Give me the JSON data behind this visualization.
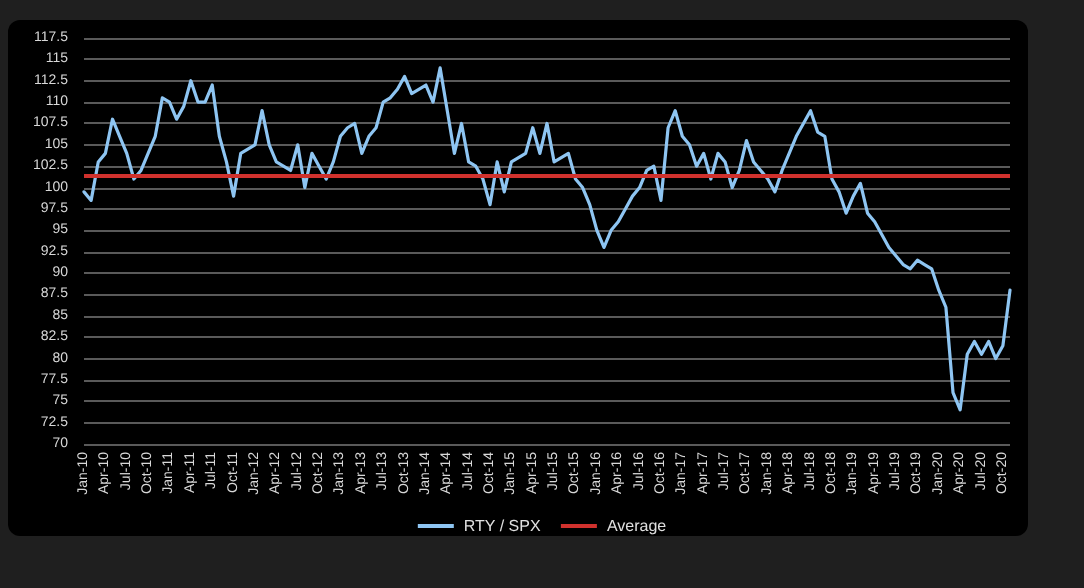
{
  "chart_data": {
    "type": "line",
    "categories": [
      "Jan-10",
      null,
      null,
      "Apr-10",
      null,
      null,
      "Jul-10",
      null,
      null,
      "Oct-10",
      null,
      null,
      "Jan-11",
      null,
      null,
      "Apr-11",
      null,
      null,
      "Jul-11",
      null,
      null,
      "Oct-11",
      null,
      null,
      "Jan-12",
      null,
      null,
      "Apr-12",
      null,
      null,
      "Jul-12",
      null,
      null,
      "Oct-12",
      null,
      null,
      "Jan-13",
      null,
      null,
      "Apr-13",
      null,
      null,
      "Jul-13",
      null,
      null,
      "Oct-13",
      null,
      null,
      "Jan-14",
      null,
      null,
      "Apr-14",
      null,
      null,
      "Jul-14",
      null,
      null,
      "Oct-14",
      null,
      null,
      "Jan-15",
      null,
      null,
      "Apr-15",
      null,
      null,
      "Jul-15",
      null,
      null,
      "Oct-15",
      null,
      null,
      "Jan-16",
      null,
      null,
      "Apr-16",
      null,
      null,
      "Jul-16",
      null,
      null,
      "Oct-16",
      null,
      null,
      "Jan-17",
      null,
      null,
      "Apr-17",
      null,
      null,
      "Jul-17",
      null,
      null,
      "Oct-17",
      null,
      null,
      "Jan-18",
      null,
      null,
      "Apr-18",
      null,
      null,
      "Jul-18",
      null,
      null,
      "Oct-18",
      null,
      null,
      "Jan-19",
      null,
      null,
      "Apr-19",
      null,
      null,
      "Jul-19",
      null,
      null,
      "Oct-19",
      null,
      null,
      "Jan-20",
      null,
      null,
      "Apr-20",
      null,
      null,
      "Jul-20",
      null,
      null,
      "Oct-20",
      null
    ],
    "series": [
      {
        "name": "RTY / SPX",
        "color": "#8ec5f2",
        "values": [
          99.5,
          98.5,
          103,
          104,
          108,
          106,
          104,
          101,
          102,
          104,
          106,
          110.5,
          110,
          108,
          109.5,
          112.5,
          110,
          110,
          112,
          106,
          103,
          99,
          104,
          104.5,
          105,
          109,
          105,
          103,
          102.5,
          102,
          105,
          100,
          104,
          102.5,
          101,
          103,
          106,
          107,
          107.5,
          104,
          106,
          107,
          110,
          110.5,
          111.5,
          113,
          111,
          111.5,
          112,
          110,
          114,
          109,
          104,
          107.5,
          103,
          102.5,
          101,
          98,
          103,
          99.5,
          103,
          103.5,
          104,
          107,
          104,
          107.5,
          103,
          103.5,
          104,
          101,
          100,
          98,
          95,
          93,
          95,
          96,
          97.5,
          99,
          100,
          102,
          102.5,
          98.5,
          107,
          109,
          106,
          105,
          102.5,
          104,
          101,
          104,
          103,
          100,
          102,
          105.5,
          103,
          102,
          101,
          99.5,
          102,
          104,
          106,
          107.5,
          109,
          106.5,
          106,
          101,
          99.5,
          97,
          99,
          100.5,
          97,
          96,
          94.5,
          93,
          92,
          91,
          90.5,
          91.5,
          91,
          90.5,
          88,
          86,
          76,
          74,
          80.5,
          82,
          80.5,
          82,
          80,
          81.5,
          88
        ]
      }
    ],
    "ref_lines": [
      {
        "axis": "y",
        "value": 101.5,
        "label": "Average",
        "color": "#d0312d"
      }
    ],
    "ylim": [
      70,
      117.5
    ],
    "yticks": [
      70,
      72.5,
      75,
      77.5,
      80,
      82.5,
      85,
      87.5,
      90,
      92.5,
      95,
      97.5,
      100,
      102.5,
      105,
      107.5,
      110,
      112.5,
      115,
      117.5
    ],
    "grid": "y",
    "legend": "bottom",
    "marker": "none",
    "line_style": "solid"
  }
}
